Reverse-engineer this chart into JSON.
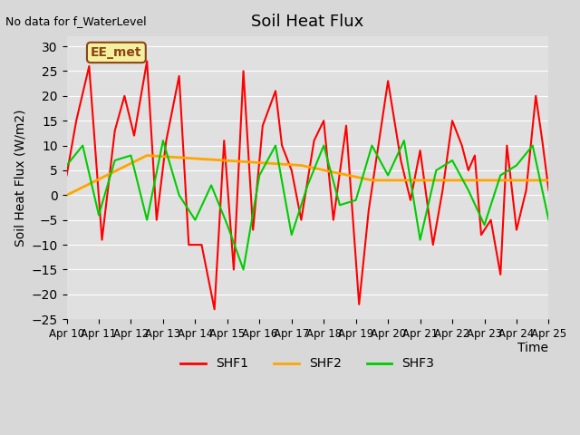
{
  "title": "Soil Heat Flux",
  "ylabel": "Soil Heat Flux (W/m2)",
  "xlabel": "Time",
  "ylim": [
    -25,
    32
  ],
  "yticks": [
    -25,
    -20,
    -15,
    -10,
    -5,
    0,
    5,
    10,
    15,
    20,
    25,
    30
  ],
  "no_data_text": "No data for f_WaterLevel",
  "box_label": "EE_met",
  "legend_labels": [
    "SHF1",
    "SHF2",
    "SHF3"
  ],
  "colors": {
    "SHF1": "#ff0000",
    "SHF2": "#ffa500",
    "SHF3": "#00cc00"
  },
  "background_color": "#d8d8d8",
  "plot_bg": "#e8e8e8",
  "x_start": 0,
  "x_end": 15,
  "shf1": [
    4,
    15,
    26,
    -9,
    13,
    20,
    12,
    27,
    -5,
    11,
    24,
    -10,
    -10,
    -23,
    11,
    -15,
    25,
    -7,
    14,
    21,
    10,
    5,
    -5,
    11,
    15,
    -5,
    14,
    -22,
    -3,
    10,
    23,
    7,
    -1,
    9,
    -10,
    1,
    15,
    10,
    5,
    8,
    -8,
    -5,
    -16,
    10,
    -7,
    1,
    20,
    11,
    1
  ],
  "shf1_x": [
    0,
    0.3,
    0.7,
    1.1,
    1.5,
    1.8,
    2.1,
    2.5,
    2.8,
    3.1,
    3.5,
    3.8,
    4.2,
    4.6,
    4.9,
    5.2,
    5.5,
    5.8,
    6.1,
    6.5,
    6.7,
    7.0,
    7.3,
    7.7,
    8.0,
    8.3,
    8.7,
    9.1,
    9.4,
    9.7,
    10.0,
    10.4,
    10.7,
    11.0,
    11.4,
    11.7,
    12.0,
    12.3,
    12.5,
    12.7,
    12.9,
    13.2,
    13.5,
    13.7,
    14.0,
    14.3,
    14.6,
    14.8,
    15.0
  ],
  "shf2_x": [
    0,
    2.5,
    4.9,
    7.3,
    9.5,
    15.0
  ],
  "shf2": [
    0,
    8,
    7,
    6,
    3,
    3
  ],
  "shf3_x": [
    0,
    0.5,
    1.0,
    1.5,
    2.0,
    2.5,
    3.0,
    3.5,
    4.0,
    4.5,
    5.0,
    5.5,
    6.0,
    6.5,
    7.0,
    7.5,
    8.0,
    8.5,
    9.0,
    9.5,
    10.0,
    10.5,
    11.0,
    11.5,
    12.0,
    12.5,
    13.0,
    13.5,
    14.0,
    14.5,
    15.0
  ],
  "shf3": [
    6,
    10,
    -4,
    7,
    8,
    -5,
    11,
    0,
    -5,
    2,
    -6,
    -15,
    4,
    10,
    -8,
    2,
    10,
    -2,
    -1,
    10,
    4,
    11,
    -9,
    5,
    7,
    1,
    -6,
    4,
    6,
    10,
    -5
  ],
  "xtick_labels": [
    "Apr 10",
    "Apr 11",
    "Apr 12",
    "Apr 13",
    "Apr 14",
    "Apr 15",
    "Apr 16",
    "Apr 17",
    "Apr 18",
    "Apr 19",
    "Apr 20",
    "Apr 21",
    "Apr 22",
    "Apr 23",
    "Apr 24",
    "Apr 25"
  ],
  "xtick_positions": [
    0,
    1,
    2,
    3,
    4,
    5,
    6,
    7,
    8,
    9,
    10,
    11,
    12,
    13,
    14,
    15
  ]
}
